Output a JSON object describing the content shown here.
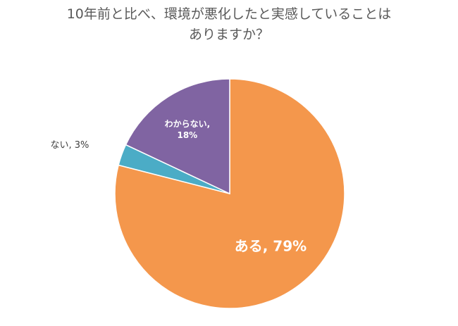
{
  "chart_data": {
    "type": "pie",
    "title_lines": [
      "10年前と比べ、環境が悪化したと実感していることは",
      "ありますか？"
    ],
    "start_angle_deg": 0,
    "direction": "clockwise",
    "legend": "none",
    "slices": [
      {
        "label": "ある",
        "value": 79,
        "display": "ある, 79%",
        "color": "#F4974C",
        "label_color": "#FFFFFF",
        "label_position": "inside"
      },
      {
        "label": "ない",
        "value": 3,
        "display": "ない, 3%",
        "color": "#4BACC6",
        "label_color": "#404040",
        "label_position": "outside"
      },
      {
        "label": "わからない",
        "value": 18,
        "display_lines": [
          "わからない,",
          "18%"
        ],
        "color": "#8064A2",
        "label_color": "#FFFFFF",
        "label_position": "inside"
      }
    ]
  }
}
